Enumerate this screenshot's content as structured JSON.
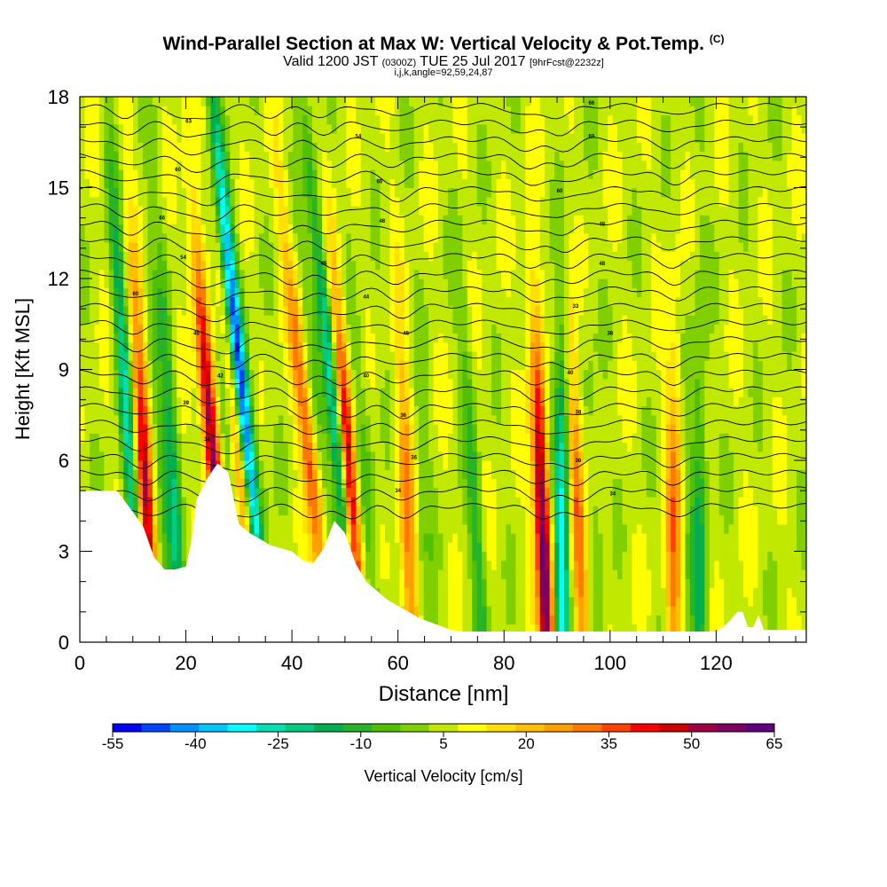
{
  "header": {
    "title_main": "Wind-Parallel Section at Max W: Vertical Velocity & Pot.Temp.",
    "title_tag": "(C)",
    "valid_prefix": "Valid 1200 JST",
    "valid_utc": "(0300Z)",
    "valid_date": "TUE 25 Jul 2017",
    "valid_fcst": "[9hrFcst@2232z]",
    "subline": "i,j,k,angle=92,59,24,87"
  },
  "chart_data": {
    "type": "heatmap",
    "xlabel": "Distance [nm]",
    "ylabel": "Height [Kft MSL]",
    "xlim": [
      0,
      137
    ],
    "ylim": [
      0,
      18
    ],
    "x_ticks": [
      0,
      20,
      40,
      60,
      80,
      100,
      120
    ],
    "y_ticks": [
      0,
      3,
      6,
      9,
      12,
      15,
      18
    ],
    "colorbar": {
      "label": "Vertical Velocity [cm/s]",
      "min": -55,
      "max": 65,
      "step": 5,
      "tick_labels": [
        -55,
        -40,
        -25,
        -10,
        5,
        20,
        35,
        50,
        65
      ],
      "colors": [
        "#0000ff",
        "#0044ff",
        "#0090ff",
        "#00c8ff",
        "#00ffff",
        "#00e0b0",
        "#00cc80",
        "#00b050",
        "#28b428",
        "#50c000",
        "#80d000",
        "#c0e800",
        "#ffff00",
        "#ffe000",
        "#ffc000",
        "#ffa000",
        "#ff7800",
        "#ff4000",
        "#ff0000",
        "#d00000",
        "#a00040",
        "#800060",
        "#600080"
      ]
    },
    "terrain_kft": [
      [
        0,
        5.0
      ],
      [
        7,
        5.0
      ],
      [
        10,
        4.3
      ],
      [
        12,
        3.8
      ],
      [
        14,
        2.8
      ],
      [
        16,
        2.4
      ],
      [
        18,
        2.4
      ],
      [
        20,
        2.5
      ],
      [
        21,
        3.3
      ],
      [
        22,
        4.7
      ],
      [
        24,
        5.4
      ],
      [
        26,
        5.9
      ],
      [
        28,
        5.6
      ],
      [
        30,
        3.9
      ],
      [
        32,
        3.6
      ],
      [
        34,
        3.4
      ],
      [
        36,
        3.2
      ],
      [
        38,
        3.1
      ],
      [
        40,
        3.0
      ],
      [
        42,
        2.7
      ],
      [
        44,
        2.6
      ],
      [
        46,
        3.1
      ],
      [
        48,
        4.0
      ],
      [
        50,
        3.6
      ],
      [
        52,
        2.6
      ],
      [
        54,
        2.0
      ],
      [
        56,
        1.7
      ],
      [
        58,
        1.4
      ],
      [
        60,
        1.2
      ],
      [
        62,
        1.0
      ],
      [
        64,
        0.8
      ],
      [
        67,
        0.6
      ],
      [
        70,
        0.4
      ],
      [
        72,
        0.35
      ],
      [
        120,
        0.35
      ],
      [
        122,
        0.6
      ],
      [
        124,
        1.0
      ],
      [
        125,
        1.0
      ],
      [
        126,
        0.5
      ],
      [
        127,
        0.5
      ],
      [
        128,
        0.9
      ],
      [
        129,
        0.4
      ],
      [
        137,
        0.4
      ]
    ],
    "updrafts": [
      {
        "x0": 12.5,
        "z0": 4.5,
        "slant_nm_per_kft": -0.3,
        "w": 42
      },
      {
        "x0": 25,
        "z0": 6.2,
        "slant_nm_per_kft": -0.45,
        "w": 50
      },
      {
        "x0": 31,
        "z0": 4.5,
        "slant_nm_per_kft": -0.55,
        "w": 30
      },
      {
        "x0": 43,
        "z0": 6.5,
        "slant_nm_per_kft": -0.62,
        "w": 28
      },
      {
        "x0": 51,
        "z0": 5.0,
        "slant_nm_per_kft": -0.4,
        "w": 45
      },
      {
        "x0": 62,
        "z0": 3.0,
        "slant_nm_per_kft": -0.2,
        "w": 24
      },
      {
        "x0": 87.5,
        "z0": 3.0,
        "slant_nm_per_kft": -0.22,
        "w": 58
      },
      {
        "x0": 94,
        "z0": 4.0,
        "slant_nm_per_kft": -0.25,
        "w": 30
      },
      {
        "x0": 112,
        "z0": 3.0,
        "slant_nm_per_kft": 0.0,
        "w": 24
      }
    ],
    "downdrafts": [
      {
        "x0": 9,
        "z0": 7.0,
        "slant_nm_per_kft": -0.35,
        "w": -28
      },
      {
        "x0": 18,
        "z0": 4.0,
        "slant_nm_per_kft": -0.3,
        "w": -20
      },
      {
        "x0": 30,
        "z0": 9.0,
        "slant_nm_per_kft": -0.55,
        "w": -52
      },
      {
        "x0": 48,
        "z0": 7.5,
        "slant_nm_per_kft": -0.55,
        "w": -34
      },
      {
        "x0": 91,
        "z0": 2.5,
        "slant_nm_per_kft": 0.0,
        "w": -28
      },
      {
        "x0": 75,
        "z0": 3.0,
        "slant_nm_per_kft": -0.35,
        "w": -16
      },
      {
        "x0": 117,
        "z0": 2.5,
        "slant_nm_per_kft": 0.0,
        "w": -18
      }
    ],
    "isentrope_labels": [
      {
        "x": 20.5,
        "z": 17.2,
        "text": "63"
      },
      {
        "x": 18.5,
        "z": 15.6,
        "text": "60"
      },
      {
        "x": 15.5,
        "z": 14.0,
        "text": "66"
      },
      {
        "x": 19.5,
        "z": 12.7,
        "text": "54"
      },
      {
        "x": 10.5,
        "z": 11.5,
        "text": "60"
      },
      {
        "x": 22,
        "z": 10.2,
        "text": "45"
      },
      {
        "x": 26.5,
        "z": 8.8,
        "text": "42"
      },
      {
        "x": 20,
        "z": 7.9,
        "text": "39"
      },
      {
        "x": 24,
        "z": 6.7,
        "text": "36"
      },
      {
        "x": 52.5,
        "z": 16.7,
        "text": "54"
      },
      {
        "x": 56.5,
        "z": 15.2,
        "text": "60"
      },
      {
        "x": 57,
        "z": 13.9,
        "text": "48"
      },
      {
        "x": 46,
        "z": 12.5,
        "text": "45"
      },
      {
        "x": 54,
        "z": 11.4,
        "text": "44"
      },
      {
        "x": 61.5,
        "z": 10.2,
        "text": "48"
      },
      {
        "x": 54,
        "z": 8.8,
        "text": "40"
      },
      {
        "x": 61,
        "z": 7.5,
        "text": "36"
      },
      {
        "x": 63,
        "z": 6.1,
        "text": "36"
      },
      {
        "x": 60,
        "z": 5.0,
        "text": "34"
      },
      {
        "x": 96.5,
        "z": 17.8,
        "text": "66"
      },
      {
        "x": 96.5,
        "z": 16.7,
        "text": "69"
      },
      {
        "x": 90.5,
        "z": 14.9,
        "text": "60"
      },
      {
        "x": 98.5,
        "z": 13.8,
        "text": "48"
      },
      {
        "x": 98.5,
        "z": 12.5,
        "text": "48"
      },
      {
        "x": 93.5,
        "z": 11.1,
        "text": "33"
      },
      {
        "x": 100,
        "z": 10.2,
        "text": "38"
      },
      {
        "x": 92.5,
        "z": 8.9,
        "text": "40"
      },
      {
        "x": 94,
        "z": 7.6,
        "text": "38"
      },
      {
        "x": 94,
        "z": 6.0,
        "text": "36"
      },
      {
        "x": 100.5,
        "z": 4.9,
        "text": "34"
      }
    ]
  }
}
